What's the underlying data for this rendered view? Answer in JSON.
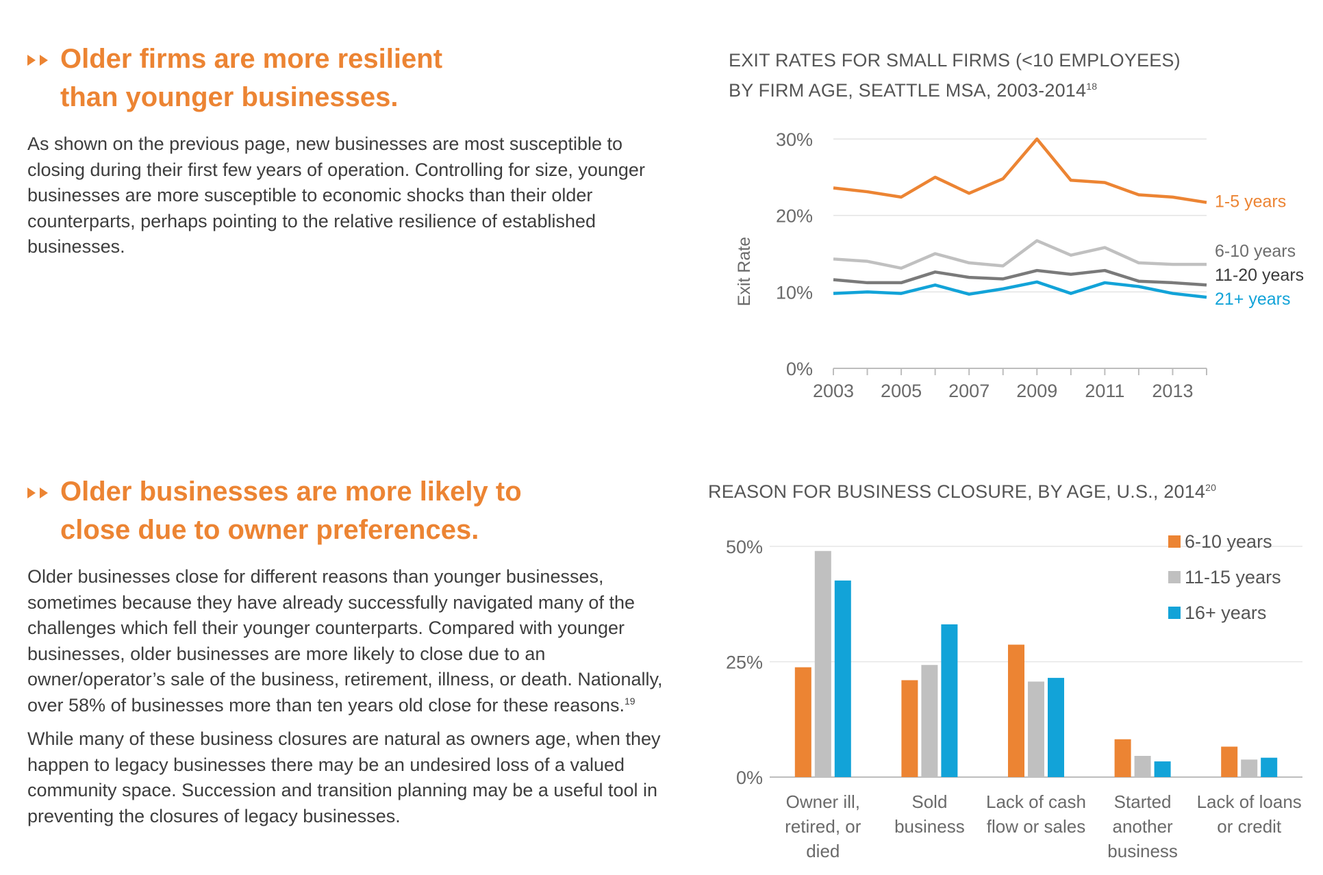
{
  "sections": [
    {
      "heading_lines": [
        "Older firms are more resilient",
        "than younger businesses."
      ],
      "paragraphs": [
        "As shown on the previous page, new businesses are most susceptible to closing during their first few years of operation. Controlling for size, younger businesses are more susceptible to economic shocks than their older counterparts, perhaps pointing to the relative resilience of established businesses."
      ]
    },
    {
      "heading_lines": [
        "Older businesses are more likely to",
        "close due to owner preferences."
      ],
      "paragraphs": [
        "Older businesses close for different reasons than younger businesses, sometimes because they have already successfully navigated many of the challenges which fell their younger counterparts. Compared with younger businesses, older businesses are more likely to close due to an owner/operator’s sale of the business, retirement, illness, or death. Nationally, over 58% of businesses more than ten years old close for these reasons.",
        "While many of these business closures are natural as owners age, when they happen to legacy businesses there may be an undesired loss of a valued community space. Succession and transition planning may be a useful tool in preventing the closures of legacy businesses."
      ],
      "paragraph_footnotes": [
        "19",
        ""
      ]
    }
  ],
  "chart_data": [
    {
      "type": "line",
      "title_lines": [
        "EXIT RATES FOR SMALL FIRMS (<10 EMPLOYEES)",
        "BY FIRM AGE, SEATTLE MSA, 2003-2014"
      ],
      "title_footnote": "18",
      "ylabel": "Exit Rate",
      "ylim": [
        0,
        30
      ],
      "y_ticks": [
        0,
        10,
        20,
        30
      ],
      "y_tick_labels": [
        "0%",
        "10%",
        "20%",
        "30%"
      ],
      "x": [
        2003,
        2004,
        2005,
        2006,
        2007,
        2008,
        2009,
        2010,
        2011,
        2012,
        2013,
        2014
      ],
      "x_ticks": [
        2003,
        2005,
        2007,
        2009,
        2011,
        2013
      ],
      "x_tick_labels": [
        "2003",
        "2005",
        "2007",
        "2009",
        "2011",
        "2013"
      ],
      "grid": true,
      "legend": "inline-right",
      "series": [
        {
          "name": "1-5 years",
          "color": "#ec8433",
          "label_color": "#ec8433",
          "values": [
            23.6,
            23.1,
            22.4,
            25.0,
            22.9,
            24.8,
            30.0,
            24.6,
            24.3,
            22.7,
            22.4,
            21.7
          ]
        },
        {
          "name": "6-10 years",
          "color": "#c0c0c0",
          "label_color": "#6d6d6d",
          "values": [
            14.3,
            14.0,
            13.1,
            15.0,
            13.8,
            13.4,
            16.7,
            14.8,
            15.8,
            13.8,
            13.6,
            13.6
          ]
        },
        {
          "name": "11-20 years",
          "color": "#7a7a7a",
          "label_color": "#3a3a3a",
          "values": [
            11.6,
            11.2,
            11.2,
            12.6,
            11.9,
            11.7,
            12.8,
            12.3,
            12.8,
            11.4,
            11.2,
            10.9
          ]
        },
        {
          "name": "21+ years",
          "color": "#12a3d8",
          "label_color": "#12a3d8",
          "values": [
            9.8,
            10.0,
            9.8,
            10.9,
            9.7,
            10.4,
            11.3,
            9.8,
            11.2,
            10.7,
            9.8,
            9.3
          ]
        }
      ]
    },
    {
      "type": "bar",
      "title": "REASON FOR BUSINESS CLOSURE, BY AGE, U.S., 2014",
      "title_footnote": "20",
      "ylim": [
        0,
        50
      ],
      "y_ticks": [
        0,
        25,
        50
      ],
      "y_tick_labels": [
        "0%",
        "25%",
        "50%"
      ],
      "categories": [
        [
          "Owner ill,",
          "retired, or",
          "died"
        ],
        [
          "Sold",
          "business"
        ],
        [
          "Lack of cash",
          "flow or sales"
        ],
        [
          "Started",
          "another",
          "business"
        ],
        [
          "Lack of loans",
          "or credit"
        ]
      ],
      "grid": true,
      "legend": "top-right",
      "series": [
        {
          "name": "6-10 years",
          "color": "#ec8433",
          "values": [
            23.8,
            21.0,
            28.7,
            8.2,
            6.6
          ]
        },
        {
          "name": "11-15 years",
          "color": "#c0c0c0",
          "values": [
            49.0,
            24.3,
            20.7,
            4.6,
            3.8
          ]
        },
        {
          "name": "16+ years",
          "color": "#12a3d8",
          "values": [
            42.6,
            33.1,
            21.5,
            3.4,
            4.2
          ]
        }
      ]
    }
  ]
}
